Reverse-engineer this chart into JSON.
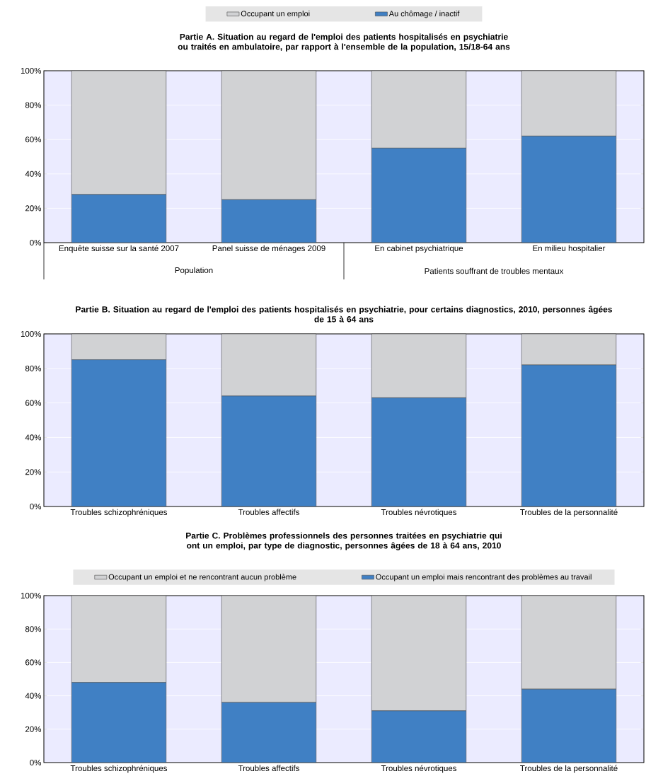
{
  "chart_data": [
    {
      "type": "bar",
      "stacked": true,
      "title": "Partie A. Situation au regard de l'emploi des patients hospitalisés en psychiatrie ou traités en ambulatoire, par rapport à l'ensemble de la population, 15/18-64 ans",
      "categories": [
        "Enquête suisse sur la santé 2007",
        "Panel suisse de ménages 2009",
        "En cabinet psychiatrique",
        "En milieu hospitalier"
      ],
      "series": [
        {
          "name": "Au chômage / inactif",
          "color": "#4080c4",
          "values": [
            28,
            25,
            55,
            62
          ]
        },
        {
          "name": "Occupant un emploi",
          "color": "#d1d2d4",
          "values": [
            72,
            75,
            45,
            38
          ]
        }
      ],
      "ylim": [
        0,
        100
      ],
      "yticks": [
        {
          "value": 0,
          "label": "0%"
        },
        {
          "value": 20,
          "label": "20%"
        },
        {
          "value": 40,
          "label": "40%"
        },
        {
          "value": 60,
          "label": "60%"
        },
        {
          "value": 80,
          "label": "80%"
        },
        {
          "value": 100,
          "label": "100%"
        }
      ],
      "grid": "y",
      "legend": "top",
      "annotations": [
        "Population",
        "Patients souffrant de troubles mentaux"
      ]
    },
    {
      "type": "bar",
      "stacked": true,
      "title": "Partie B. Situation au regard de l'emploi des patients hospitalisés en psychiatrie, pour certains diagnostics, 2010, personnes âgées de 15 à 64 ans",
      "categories": [
        "Troubles schizophréniques",
        "Troubles affectifs",
        "Troubles névrotiques",
        "Troubles de la personnalité"
      ],
      "series": [
        {
          "color": "#4080c4",
          "values": [
            85,
            64,
            63,
            82
          ]
        },
        {
          "color": "#d1d2d4",
          "values": [
            15,
            36,
            37,
            18
          ]
        }
      ],
      "ylim": [
        0,
        100
      ],
      "yticks": [
        {
          "value": 0,
          "label": "0%"
        },
        {
          "value": 20,
          "label": "20%"
        },
        {
          "value": 40,
          "label": "40%"
        },
        {
          "value": 60,
          "label": "60%"
        },
        {
          "value": 80,
          "label": "80%"
        },
        {
          "value": 100,
          "label": "100%"
        }
      ],
      "grid": "y"
    },
    {
      "type": "bar",
      "stacked": true,
      "title": "Partie C. Problèmes professionnels des personnes traitées en psychiatrie qui ont un emploi, par type de diagnostic, personnes âgées de 18 à 64 ans, 2010",
      "categories": [
        "Troubles schizophréniques",
        "Troubles affectifs",
        "Troubles névrotiques",
        "Troubles de la personnalité"
      ],
      "series": [
        {
          "name": "Occupant un emploi mais rencontrant des problèmes au travail",
          "color": "#4080c4",
          "values": [
            48,
            36,
            31,
            44
          ]
        },
        {
          "name": "Occupant un emploi et ne rencontrant aucun problème",
          "color": "#d1d2d4",
          "values": [
            52,
            64,
            69,
            56
          ]
        }
      ],
      "ylim": [
        0,
        100
      ],
      "yticks": [
        {
          "value": 0,
          "label": "0%"
        },
        {
          "value": 20,
          "label": "20%"
        },
        {
          "value": 40,
          "label": "40%"
        },
        {
          "value": 60,
          "label": "60%"
        },
        {
          "value": 80,
          "label": "80%"
        },
        {
          "value": 100,
          "label": "100%"
        }
      ],
      "grid": "y",
      "legend": "top"
    }
  ]
}
